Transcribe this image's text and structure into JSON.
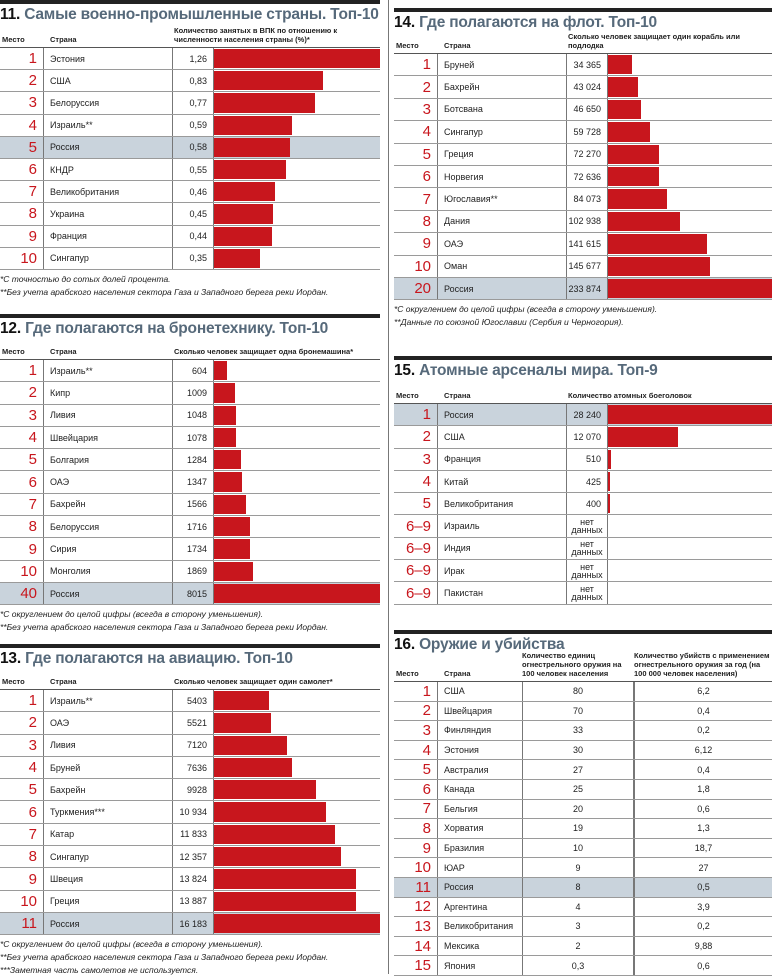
{
  "s11": {
    "num": "11.",
    "title": "Самые военно-промышленные страны. Топ-10",
    "h_place": "Место",
    "h_country": "Страна",
    "h_value": "Количество занятых в ВПК по отношению к численности населения страны (%)*",
    "rows": [
      {
        "p": "1",
        "c": "Эстония",
        "v": "1,26",
        "n": 1.26
      },
      {
        "p": "2",
        "c": "США",
        "v": "0,83",
        "n": 0.83
      },
      {
        "p": "3",
        "c": "Белоруссия",
        "v": "0,77",
        "n": 0.77
      },
      {
        "p": "4",
        "c": "Израиль**",
        "v": "0,59",
        "n": 0.59
      },
      {
        "p": "5",
        "c": "Россия",
        "v": "0,58",
        "n": 0.58,
        "hl": true
      },
      {
        "p": "6",
        "c": "КНДР",
        "v": "0,55",
        "n": 0.55
      },
      {
        "p": "7",
        "c": "Великобритания",
        "v": "0,46",
        "n": 0.46
      },
      {
        "p": "8",
        "c": "Украина",
        "v": "0,45",
        "n": 0.45
      },
      {
        "p": "9",
        "c": "Франция",
        "v": "0,44",
        "n": 0.44
      },
      {
        "p": "10",
        "c": "Сингапур",
        "v": "0,35",
        "n": 0.35
      }
    ],
    "notes": [
      "*С точностью до сотых долей процента.",
      "**Без учета арабского населения сектора Газа и Западного берега реки Иордан."
    ]
  },
  "s12": {
    "num": "12.",
    "title": "Где полагаются на бронетехнику. Топ-10",
    "h_place": "Место",
    "h_country": "Страна",
    "h_value": "Сколько человек защищает одна бронемашина*",
    "rows": [
      {
        "p": "1",
        "c": "Израиль**",
        "v": "604",
        "n": 604
      },
      {
        "p": "2",
        "c": "Кипр",
        "v": "1009",
        "n": 1009
      },
      {
        "p": "3",
        "c": "Ливия",
        "v": "1048",
        "n": 1048
      },
      {
        "p": "4",
        "c": "Швейцария",
        "v": "1078",
        "n": 1078
      },
      {
        "p": "5",
        "c": "Болгария",
        "v": "1284",
        "n": 1284
      },
      {
        "p": "6",
        "c": "ОАЭ",
        "v": "1347",
        "n": 1347
      },
      {
        "p": "7",
        "c": "Бахрейн",
        "v": "1566",
        "n": 1566
      },
      {
        "p": "8",
        "c": "Белоруссия",
        "v": "1716",
        "n": 1716
      },
      {
        "p": "9",
        "c": "Сирия",
        "v": "1734",
        "n": 1734
      },
      {
        "p": "10",
        "c": "Монголия",
        "v": "1869",
        "n": 1869
      },
      {
        "p": "40",
        "c": "Россия",
        "v": "8015",
        "n": 8015,
        "hl": true
      }
    ],
    "notes": [
      "*С округлением до целой цифры (всегда в сторону уменьшения).",
      "**Без учета арабского населения сектора Газа и Западного берега реки Иордан."
    ]
  },
  "s13": {
    "num": "13.",
    "title": "Где полагаются на авиацию. Топ-10",
    "h_place": "Место",
    "h_country": "Страна",
    "h_value": "Сколько человек защищает один самолет*",
    "rows": [
      {
        "p": "1",
        "c": "Израиль**",
        "v": "5403",
        "n": 5403
      },
      {
        "p": "2",
        "c": "ОАЭ",
        "v": "5521",
        "n": 5521
      },
      {
        "p": "3",
        "c": "Ливия",
        "v": "7120",
        "n": 7120
      },
      {
        "p": "4",
        "c": "Бруней",
        "v": "7636",
        "n": 7636
      },
      {
        "p": "5",
        "c": "Бахрейн",
        "v": "9928",
        "n": 9928
      },
      {
        "p": "6",
        "c": "Туркмения***",
        "v": "10 934",
        "n": 10934
      },
      {
        "p": "7",
        "c": "Катар",
        "v": "11 833",
        "n": 11833
      },
      {
        "p": "8",
        "c": "Сингапур",
        "v": "12 357",
        "n": 12357
      },
      {
        "p": "9",
        "c": "Швеция",
        "v": "13 824",
        "n": 13824
      },
      {
        "p": "10",
        "c": "Греция",
        "v": "13 887",
        "n": 13887
      },
      {
        "p": "11",
        "c": "Россия",
        "v": "16 183",
        "n": 16183,
        "hl": true
      }
    ],
    "notes": [
      "*С округлением до целой цифры (всегда в сторону уменьшения).",
      "**Без учета арабского населения сектора Газа и Западного берега реки Иордан.",
      "***Заметная часть самолетов не используется."
    ]
  },
  "s14": {
    "num": "14.",
    "title": "Где полагаются на флот. Топ-10",
    "h_place": "Место",
    "h_country": "Страна",
    "h_value": "Сколько человек защищает один корабль или подлодка",
    "rows": [
      {
        "p": "1",
        "c": "Бруней",
        "v": "34 365",
        "n": 34365
      },
      {
        "p": "2",
        "c": "Бахрейн",
        "v": "43 024",
        "n": 43024
      },
      {
        "p": "3",
        "c": "Ботсвана",
        "v": "46 650",
        "n": 46650
      },
      {
        "p": "4",
        "c": "Сингапур",
        "v": "59 728",
        "n": 59728
      },
      {
        "p": "5",
        "c": "Греция",
        "v": "72 270",
        "n": 72270
      },
      {
        "p": "6",
        "c": "Норвегия",
        "v": "72 636",
        "n": 72636
      },
      {
        "p": "7",
        "c": "Югославия**",
        "v": "84 073",
        "n": 84073
      },
      {
        "p": "8",
        "c": "Дания",
        "v": "102 938",
        "n": 102938
      },
      {
        "p": "9",
        "c": "ОАЭ",
        "v": "141 615",
        "n": 141615
      },
      {
        "p": "10",
        "c": "Оман",
        "v": "145 677",
        "n": 145677
      },
      {
        "p": "20",
        "c": "Россия",
        "v": "233 874",
        "n": 233874,
        "hl": true
      }
    ],
    "notes": [
      "*С округлением до целой цифры (всегда в сторону уменьшения).",
      "**Данные по союзной Югославии (Сербия и Черногория)."
    ]
  },
  "s15": {
    "num": "15.",
    "title": "Атомные арсеналы мира. Топ-9",
    "h_place": "Место",
    "h_country": "Страна",
    "h_value": "Количество атомных боеголовок",
    "rows": [
      {
        "p": "1",
        "c": "Россия",
        "v": "28 240",
        "n": 28240,
        "hl": true
      },
      {
        "p": "2",
        "c": "США",
        "v": "12 070",
        "n": 12070
      },
      {
        "p": "3",
        "c": "Франция",
        "v": "510",
        "n": 510
      },
      {
        "p": "4",
        "c": "Китай",
        "v": "425",
        "n": 425
      },
      {
        "p": "5",
        "c": "Великобритания",
        "v": "400",
        "n": 400
      },
      {
        "p": "6–9",
        "c": "Израиль",
        "v": "нет данных"
      },
      {
        "p": "6–9",
        "c": "Индия",
        "v": "нет данных"
      },
      {
        "p": "6–9",
        "c": "Ирак",
        "v": "нет данных"
      },
      {
        "p": "6–9",
        "c": "Пакистан",
        "v": "нет данных"
      }
    ]
  },
  "s16": {
    "num": "16.",
    "title": "Оружие и убийства",
    "h_place": "Место",
    "h_country": "Страна",
    "h_col1": "Количество единиц огнестрельного оружия на 100 человек населения",
    "h_col2": "Количество убийств с применением огнестрельного оружия за год (на 100 000 человек населения)",
    "rows": [
      {
        "p": "1",
        "c": "США",
        "a": "80",
        "b": "6,2"
      },
      {
        "p": "2",
        "c": "Швейцария",
        "a": "70",
        "b": "0,4"
      },
      {
        "p": "3",
        "c": "Финляндия",
        "a": "33",
        "b": "0,2"
      },
      {
        "p": "4",
        "c": "Эстония",
        "a": "30",
        "b": "6,12"
      },
      {
        "p": "5",
        "c": "Австралия",
        "a": "27",
        "b": "0,4"
      },
      {
        "p": "6",
        "c": "Канада",
        "a": "25",
        "b": "1,8"
      },
      {
        "p": "7",
        "c": "Бельгия",
        "a": "20",
        "b": "0,6"
      },
      {
        "p": "8",
        "c": "Хорватия",
        "a": "19",
        "b": "1,3"
      },
      {
        "p": "9",
        "c": "Бразилия",
        "a": "10",
        "b": "18,7"
      },
      {
        "p": "10",
        "c": "ЮАР",
        "a": "9",
        "b": "27"
      },
      {
        "p": "11",
        "c": "Россия",
        "a": "8",
        "b": "0,5",
        "hl": true
      },
      {
        "p": "12",
        "c": "Аргентина",
        "a": "4",
        "b": "3,9"
      },
      {
        "p": "13",
        "c": "Великобритания",
        "a": "3",
        "b": "0,2"
      },
      {
        "p": "14",
        "c": "Мексика",
        "a": "2",
        "b": "9,88"
      },
      {
        "p": "15",
        "c": "Япония",
        "a": "0,3",
        "b": "0,6"
      }
    ]
  },
  "colors": {
    "accent": "#c8161d",
    "highlight": "#c9d3dc",
    "title": "#56697a"
  }
}
